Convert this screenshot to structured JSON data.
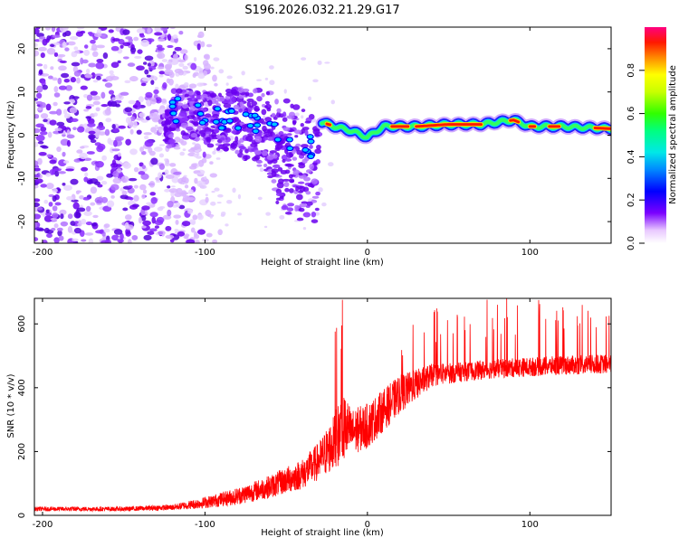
{
  "chart_data": [
    {
      "type": "heatmap",
      "title": "S196.2026.032.21.29.G17",
      "xlabel": "Height of straight line (km)",
      "ylabel": "Frequency (Hz)",
      "xlim": [
        -205,
        150
      ],
      "ylim": [
        -25,
        25
      ],
      "xticks": [
        -200,
        -100,
        0,
        100
      ],
      "yticks": [
        -20,
        -10,
        0,
        10,
        20
      ],
      "colorbar": {
        "label": "Normalized spectral amplitude",
        "range": [
          0,
          1
        ],
        "ticks": [
          "0.0",
          "0.2",
          "0.4",
          "0.6",
          "0.8"
        ]
      },
      "ridge": {
        "description_points_x": [
          -120,
          -100,
          -80,
          -60,
          -45,
          -35,
          -30,
          -28,
          -20,
          -10,
          0,
          10,
          30,
          50,
          70,
          80,
          90,
          100,
          120,
          150
        ],
        "description_points_y": [
          6,
          4,
          3,
          1,
          -2,
          -3,
          -4,
          3,
          2,
          1,
          -0.5,
          2,
          2,
          2.5,
          2.5,
          3,
          3.5,
          2,
          2,
          1.5
        ]
      },
      "noise_extent_x": [
        -205,
        -110
      ],
      "noise_extent_y": [
        -25,
        25
      ]
    },
    {
      "type": "line",
      "xlabel": "Height of straight line (km)",
      "ylabel": "SNR (10 * v/v)",
      "xlim": [
        -205,
        150
      ],
      "ylim": [
        0,
        680
      ],
      "xticks": [
        -200,
        -100,
        0,
        100
      ],
      "yticks": [
        0,
        200,
        400,
        600
      ],
      "series_color": "#ff0000",
      "envelope_x": [
        -205,
        -150,
        -120,
        -100,
        -80,
        -60,
        -40,
        -30,
        -20,
        -15,
        -10,
        0,
        10,
        20,
        30,
        40,
        60,
        80,
        100,
        120,
        150
      ],
      "envelope_mean": [
        20,
        20,
        25,
        40,
        60,
        90,
        130,
        170,
        230,
        280,
        260,
        280,
        330,
        380,
        410,
        440,
        450,
        460,
        465,
        470,
        475
      ],
      "envelope_noise": [
        12,
        12,
        15,
        30,
        45,
        60,
        80,
        100,
        150,
        200,
        120,
        120,
        110,
        100,
        80,
        60,
        50,
        50,
        50,
        50,
        50
      ]
    }
  ],
  "colors": {
    "line": "#ff0000",
    "axes": "#000000",
    "background": "#ffffff"
  }
}
